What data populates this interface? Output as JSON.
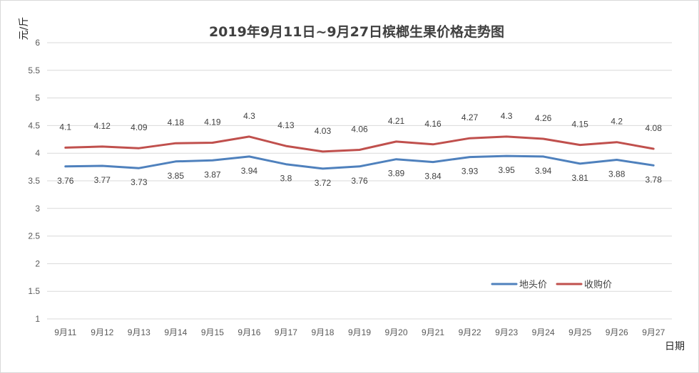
{
  "chart_data": {
    "type": "line",
    "title": "2019年9月11日~9月27日槟榔生果价格走势图",
    "xlabel": "日期",
    "ylabel": "元/斤",
    "ylim": [
      1,
      6
    ],
    "yticks": [
      "1",
      "1.5",
      "2",
      "2.5",
      "3",
      "3.5",
      "4",
      "4.5",
      "5",
      "5.5",
      "6"
    ],
    "grid": true,
    "legend_position": "bottom-right",
    "categories": [
      "9月11",
      "9月12",
      "9月13",
      "9月14",
      "9月15",
      "9月16",
      "9月17",
      "9月18",
      "9月19",
      "9月20",
      "9月21",
      "9月22",
      "9月23",
      "9月24",
      "9月25",
      "9月26",
      "9月27"
    ],
    "series": [
      {
        "name": "地头价",
        "color": "#4f81bd",
        "values": [
          3.76,
          3.77,
          3.73,
          3.85,
          3.87,
          3.94,
          3.8,
          3.72,
          3.76,
          3.89,
          3.84,
          3.93,
          3.95,
          3.94,
          3.81,
          3.88,
          3.78
        ],
        "labels": [
          "3.76",
          "3.77",
          "3.73",
          "3.85",
          "3.87",
          "3.94",
          "3.8",
          "3.72",
          "3.76",
          "3.89",
          "3.84",
          "3.93",
          "3.95",
          "3.94",
          "3.81",
          "3.88",
          "3.78"
        ],
        "label_position": "below"
      },
      {
        "name": "收购价",
        "color": "#c0504d",
        "values": [
          4.1,
          4.12,
          4.09,
          4.18,
          4.19,
          4.3,
          4.13,
          4.03,
          4.06,
          4.21,
          4.16,
          4.27,
          4.3,
          4.26,
          4.15,
          4.2,
          4.08
        ],
        "labels": [
          "4.1",
          "4.12",
          "4.09",
          "4.18",
          "4.19",
          "4.3",
          "4.13",
          "4.03",
          "4.06",
          "4.21",
          "4.16",
          "4.27",
          "4.3",
          "4.26",
          "4.15",
          "4.2",
          "4.08"
        ],
        "label_position": "above"
      }
    ]
  }
}
